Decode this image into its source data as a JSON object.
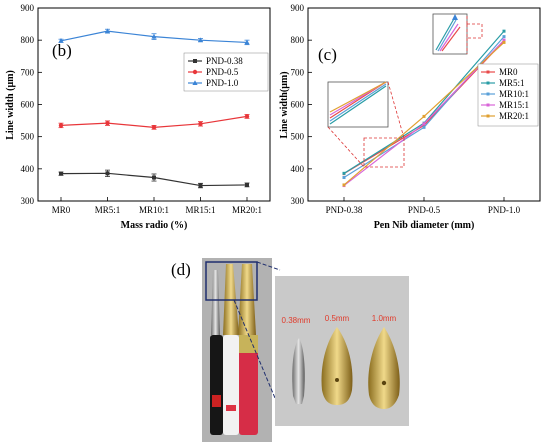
{
  "chart_data": [
    {
      "panel_label": "(b)",
      "type": "line",
      "xlabel": "Mass radio (%)",
      "ylabel": "Line width (μm)",
      "categories": [
        "MR0",
        "MR5:1",
        "MR10:1",
        "MR15:1",
        "MR20:1"
      ],
      "ylim": [
        300,
        900
      ],
      "yticks": [
        300,
        400,
        500,
        600,
        700,
        800,
        900
      ],
      "legend_position": "right",
      "series": [
        {
          "name": "PND-0.38",
          "color": "#333333",
          "marker": "square",
          "values": [
            385,
            386,
            373,
            348,
            350
          ],
          "errors": [
            5,
            10,
            11,
            7,
            6
          ]
        },
        {
          "name": "PND-0.5",
          "color": "#e8363a",
          "marker": "circle",
          "values": [
            535,
            542,
            529,
            540,
            563
          ],
          "errors": [
            7,
            7,
            6,
            7,
            6
          ]
        },
        {
          "name": "PND-1.0",
          "color": "#3b84d6",
          "marker": "triangle",
          "values": [
            798,
            828,
            811,
            800,
            793
          ],
          "errors": [
            5,
            6,
            9,
            5,
            7
          ]
        }
      ]
    },
    {
      "panel_label": "(c)",
      "type": "line",
      "xlabel": "Pen Nib diameter (mm)",
      "ylabel": "Line width(μm)",
      "categories": [
        "PND-0.38",
        "PND-0.5",
        "PND-1.0"
      ],
      "ylim": [
        300,
        900
      ],
      "yticks": [
        300,
        400,
        500,
        600,
        700,
        800,
        900
      ],
      "legend_position": "right",
      "series": [
        {
          "name": "MR0",
          "color": "#e84a4a",
          "values": [
            385,
            535,
            798
          ]
        },
        {
          "name": "MR5:1",
          "color": "#2a9da6",
          "values": [
            386,
            542,
            828
          ]
        },
        {
          "name": "MR10:1",
          "color": "#5aa0d8",
          "values": [
            373,
            529,
            811
          ]
        },
        {
          "name": "MR15:1",
          "color": "#d865d8",
          "values": [
            348,
            540,
            800
          ]
        },
        {
          "name": "MR20:1",
          "color": "#e0a030",
          "values": [
            350,
            563,
            793
          ]
        }
      ]
    }
  ],
  "figure_d": {
    "panel_label": "(d)",
    "nib_labels": [
      "0.38mm",
      "0.5mm",
      "1.0mm"
    ],
    "label_color": "#e03a2a"
  }
}
